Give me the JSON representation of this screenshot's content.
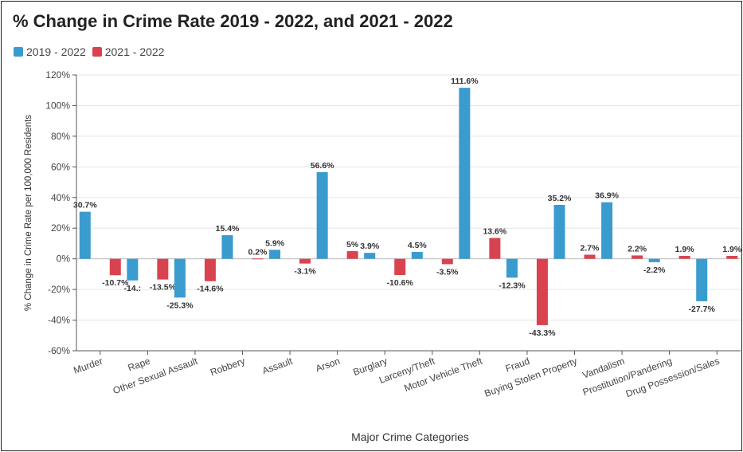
{
  "chart_data": {
    "type": "bar",
    "title": "% Change in Crime Rate 2019 - 2022, and 2021 - 2022",
    "xlabel": "Major Crime Categories",
    "ylabel": "% Change in Crime Rate per 100,000 Residents",
    "ylim": [
      -60,
      120
    ],
    "yticks": [
      -60,
      -40,
      -20,
      0,
      20,
      40,
      60,
      80,
      100,
      120
    ],
    "ytick_labels": [
      "-60%",
      "-40%",
      "-20%",
      "0%",
      "20%",
      "40%",
      "60%",
      "80%",
      "100%",
      "120%"
    ],
    "grid": true,
    "legend": "top-left",
    "categories": [
      "Murder",
      "Rape",
      "Other Sexual Assault",
      "Robbery",
      "Assault",
      "Arson",
      "Burglary",
      "Larceny/Theft",
      "Motor Vehicle Theft",
      "Fraud",
      "Buying Stolen Property",
      "Vandalism",
      "Prostitution/Pandering",
      "Drug Possession/Sales"
    ],
    "series": [
      {
        "name": "2019 - 2022",
        "color": "#3a9bcf",
        "values": [
          30.7,
          -14.1,
          -25.3,
          15.4,
          5.9,
          56.6,
          3.9,
          4.5,
          111.6,
          -12.3,
          35.2,
          36.9,
          -2.2,
          -27.7
        ],
        "labels": [
          "30.7%",
          "-14.:",
          "-25.3%",
          "15.4%",
          "5.9%",
          "56.6%",
          "3.9%",
          "4.5%",
          "111.6%",
          "-12.3%",
          "35.2%",
          "36.9%",
          "-2.2%",
          "-27.7%"
        ]
      },
      {
        "name": "2021 - 2022",
        "color": "#d9434f",
        "values": [
          -10.7,
          -13.5,
          -14.6,
          0.2,
          -3.1,
          5,
          -10.6,
          -3.5,
          13.6,
          -43.3,
          2.7,
          2.2,
          1.9,
          1.9
        ],
        "labels": [
          "-10.7%",
          "-13.5%",
          "-14.6%",
          "0.2%",
          "-3.1%",
          "5%",
          "-10.6%",
          "-3.5%",
          "13.6%",
          "-43.3%",
          "2.7%",
          "2.2%",
          "1.9%",
          "1.9%"
        ]
      }
    ]
  }
}
